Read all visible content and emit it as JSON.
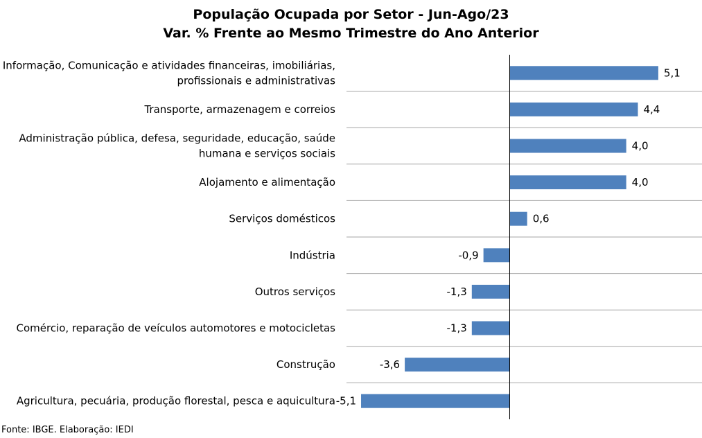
{
  "chart_data": {
    "type": "bar",
    "orientation": "horizontal",
    "title": "População Ocupada por Setor - Jun-Ago/23",
    "subtitle": "Var. % Frente ao Mesmo Trimestre do Ano Anterior",
    "categories": [
      [
        "Informação, Comunicação e atividades financeiras, imobiliárias,",
        "profissionais e administrativas"
      ],
      [
        "Transporte, armazenagem e correios"
      ],
      [
        "Administração pública, defesa, seguridade, educação, saúde",
        "humana e serviços sociais"
      ],
      [
        "Alojamento e alimentação"
      ],
      [
        "Serviços domésticos"
      ],
      [
        "Indústria"
      ],
      [
        "Outros serviços"
      ],
      [
        "Comércio, reparação de veículos automotores e motocicletas"
      ],
      [
        "Construção"
      ],
      [
        "Agricultura, pecuária, produção florestal, pesca e aquicultura"
      ]
    ],
    "values": [
      5.1,
      4.4,
      4.0,
      4.0,
      0.6,
      -0.9,
      -1.3,
      -1.3,
      -3.6,
      -5.1
    ],
    "value_labels": [
      "5,1",
      "4,4",
      "4,0",
      "4,0",
      "0,6",
      "-0,9",
      "-1,3",
      "-1,3",
      "-3,6",
      "-5,1"
    ],
    "xlim": [
      -5.6,
      6.6
    ],
    "bar_color": "#4f81bd",
    "grid_color": "#a6a6a6",
    "grid": "horizontal separators between categories",
    "legend": "none"
  },
  "source_note": "Fonte: IBGE. Elaboração: IEDI"
}
